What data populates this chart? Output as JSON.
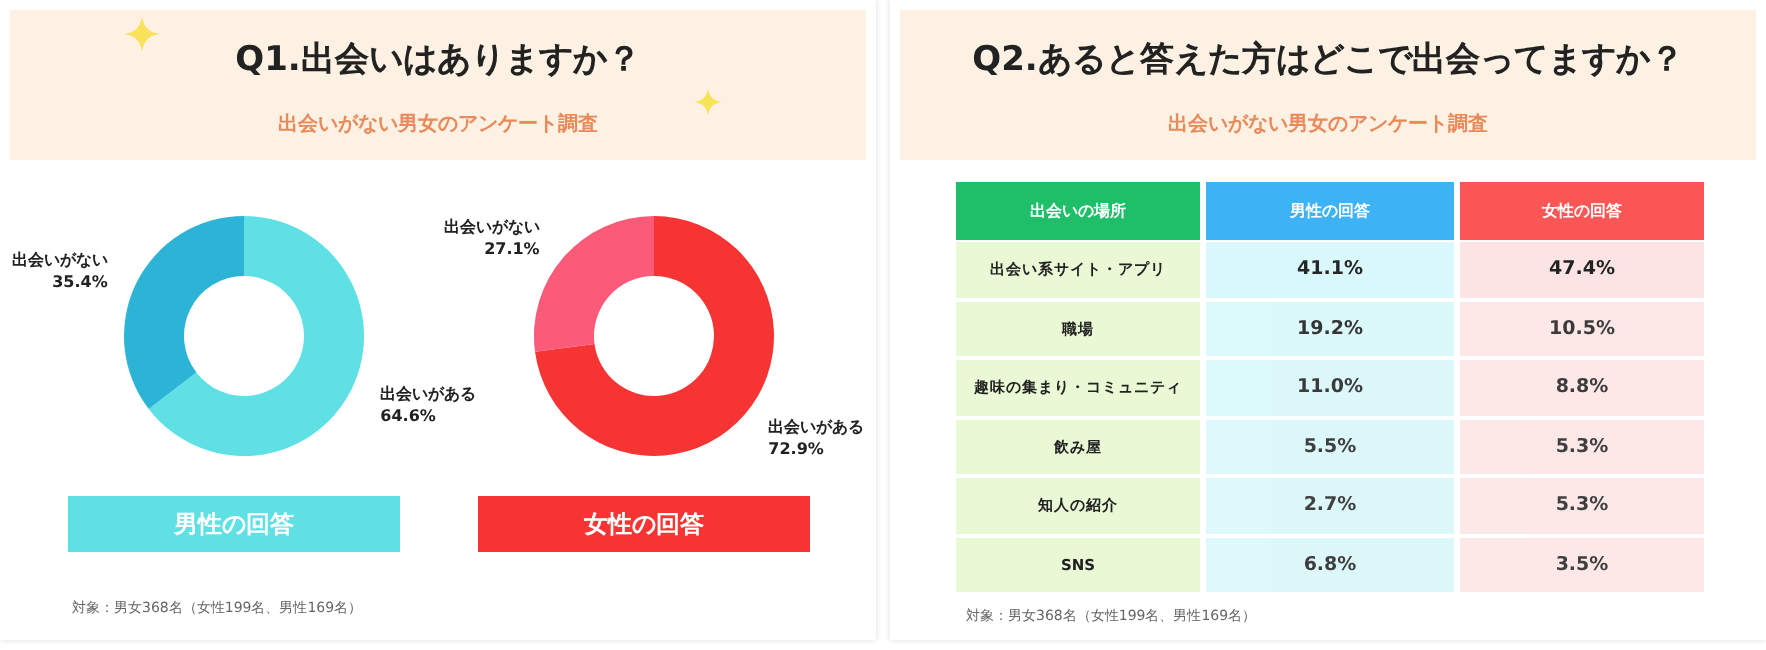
{
  "chart_data": [
    {
      "type": "donut",
      "title": "Q1.出会いはありますか？",
      "subtitle": "出会いがない男女のアンケート調査",
      "xlabel": "男性の回答",
      "categories": [
        "出会いがある",
        "出会いがない"
      ],
      "values": [
        64.6,
        35.4
      ],
      "value_labels": [
        "64.6%",
        "35.4%"
      ],
      "colors": [
        "#5ee0e4",
        "#2cb4d6"
      ],
      "annotations": [
        "対象：男女368名（女性199名、男性169名）"
      ]
    },
    {
      "type": "donut",
      "xlabel": "女性の回答",
      "categories": [
        "出会いがある",
        "出会いがない"
      ],
      "values": [
        72.9,
        27.1
      ],
      "value_labels": [
        "72.9%",
        "27.1%"
      ],
      "colors": [
        "#f63434",
        "#fb5a78"
      ]
    },
    {
      "type": "heatmap",
      "title": "Q2.あると答えた方はどこで出会ってますか？",
      "subtitle": "出会いがない男女のアンケート調査",
      "ylabel": "出会いの場所",
      "categories": [
        "男性の回答",
        "女性の回答"
      ],
      "y_categories": [
        "出会い系サイト・アプリ",
        "職場",
        "趣味の集まり・コミュニティ",
        "飲み屋",
        "知人の紹介",
        "SNS"
      ],
      "cells": [
        [
          41.1,
          47.4
        ],
        [
          19.2,
          10.5
        ],
        [
          11.0,
          8.8
        ],
        [
          5.5,
          5.3
        ],
        [
          2.7,
          5.3
        ],
        [
          6.8,
          3.5
        ]
      ],
      "cell_labels": [
        [
          "41.1%",
          "47.4%"
        ],
        [
          "19.2%",
          "10.5%"
        ],
        [
          "11.0%",
          "8.8%"
        ],
        [
          "5.5%",
          "5.3%"
        ],
        [
          "2.7%",
          "5.3%"
        ],
        [
          "6.8%",
          "3.5%"
        ]
      ],
      "colors": [
        "#d8f8fb",
        "#fde4e4"
      ],
      "annotations": [
        "対象：男女368名（女性199名、男性169名）"
      ]
    }
  ]
}
